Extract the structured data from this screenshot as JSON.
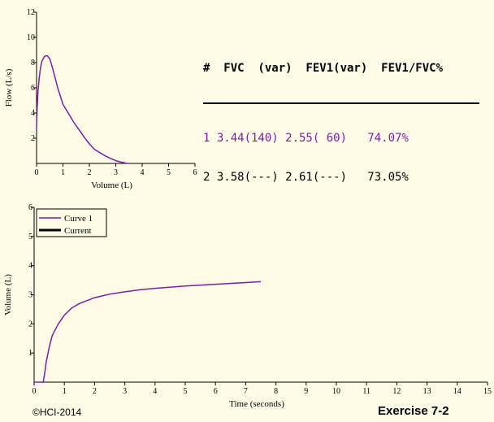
{
  "table": {
    "header": "#  FVC  (var)  FEV1(var)  FEV1/FVC%",
    "rows": [
      {
        "text": "1 3.44(140) 2.55( 60)   74.07%",
        "color": "#7a1fa3"
      },
      {
        "text": "2 3.58(---) 2.61(---)   73.05%",
        "color": "#000000"
      }
    ]
  },
  "footer": {
    "copyright": "©HCI-2014",
    "exercise": "Exercise 7-2"
  },
  "chart_data": [
    {
      "type": "line",
      "xlabel": "Volume (L)",
      "ylabel": "Flow (L/s)",
      "xlim": [
        0,
        6
      ],
      "ylim": [
        0,
        12
      ],
      "xticks": [
        "0",
        "1",
        "2",
        "3",
        "4",
        "5",
        "6"
      ],
      "yticks": [
        "2",
        "4",
        "6",
        "8",
        "10",
        "12"
      ],
      "series": [
        {
          "name": "Curve 1",
          "color": "#7a1fa3",
          "x": [
            0.0,
            0.02,
            0.05,
            0.1,
            0.15,
            0.2,
            0.3,
            0.4,
            0.5,
            0.6,
            0.7,
            0.8,
            1.0,
            1.2,
            1.4,
            1.6,
            1.8,
            2.0,
            2.2,
            2.4,
            2.6,
            2.8,
            3.0,
            3.2,
            3.44
          ],
          "y": [
            2.8,
            4.2,
            5.6,
            6.8,
            7.6,
            8.1,
            8.5,
            8.55,
            8.3,
            7.6,
            6.8,
            6.0,
            4.7,
            4.0,
            3.3,
            2.7,
            2.1,
            1.55,
            1.1,
            0.85,
            0.6,
            0.4,
            0.22,
            0.1,
            0.0
          ]
        }
      ]
    },
    {
      "type": "line",
      "xlabel": "Time (seconds)",
      "ylabel": "Volume (L)",
      "xlim": [
        0,
        15
      ],
      "ylim": [
        0,
        6
      ],
      "xticks": [
        "0",
        "1",
        "2",
        "3",
        "4",
        "5",
        "6",
        "7",
        "8",
        "9",
        "10",
        "11",
        "12",
        "13",
        "14",
        "15"
      ],
      "yticks": [
        "1",
        "2",
        "3",
        "4",
        "5",
        "6"
      ],
      "legend": {
        "position": "top-left",
        "entries": [
          "Curve 1",
          "Current"
        ]
      },
      "series": [
        {
          "name": "Curve 1",
          "color": "#7a1fa3",
          "x": [
            0.0,
            0.3,
            0.35,
            0.4,
            0.5,
            0.6,
            0.8,
            1.0,
            1.25,
            1.5,
            2.0,
            2.5,
            3.0,
            3.5,
            4.0,
            5.0,
            6.0,
            7.0,
            7.5
          ],
          "y": [
            0.0,
            0.0,
            0.3,
            0.7,
            1.2,
            1.6,
            2.0,
            2.3,
            2.55,
            2.7,
            2.9,
            3.02,
            3.1,
            3.17,
            3.22,
            3.3,
            3.36,
            3.42,
            3.45
          ]
        },
        {
          "name": "Current",
          "color": "#000000",
          "x": [],
          "y": []
        }
      ]
    }
  ]
}
